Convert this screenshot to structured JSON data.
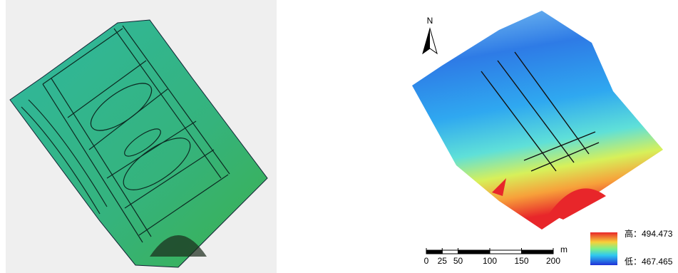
{
  "north_label": "N",
  "scale_bar": {
    "unit": "m",
    "ticks": [
      0,
      25,
      50,
      100,
      150,
      200
    ]
  },
  "legend": {
    "high": "高：494.473",
    "low": "低：467.465"
  }
}
